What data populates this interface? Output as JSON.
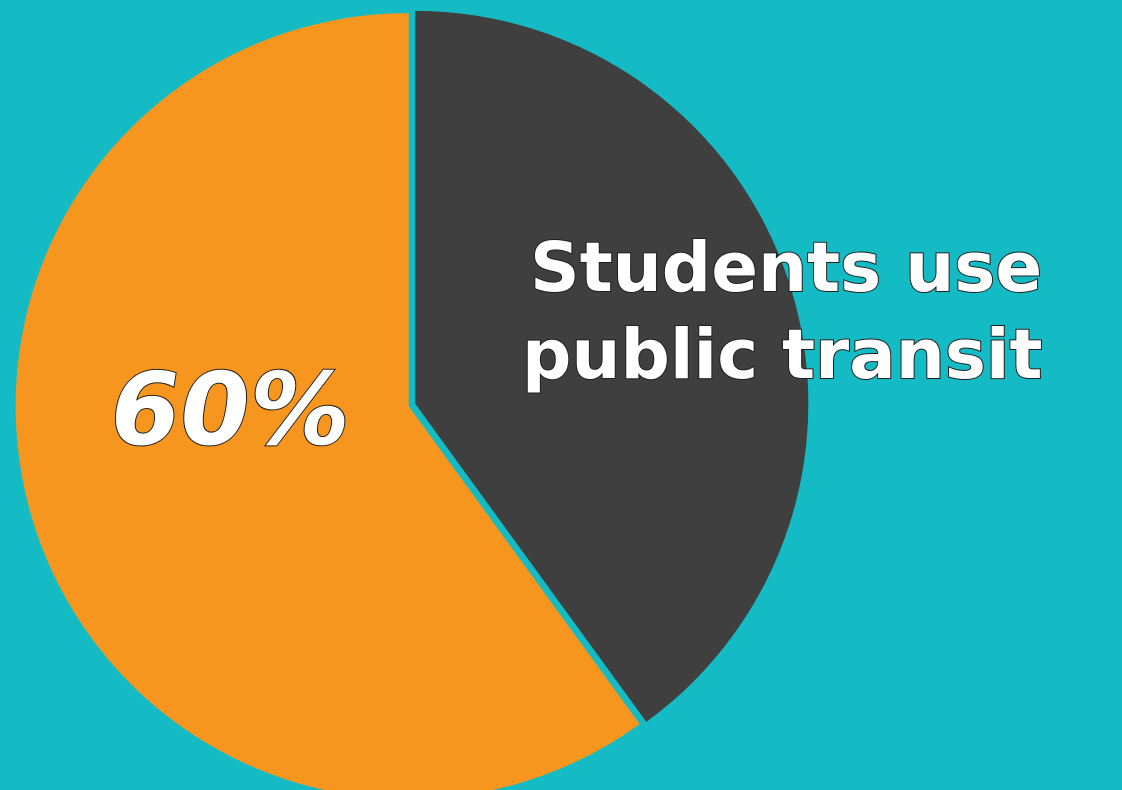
{
  "chart_data": {
    "type": "pie",
    "categories": [
      "Students use public transit",
      ""
    ],
    "values": [
      60,
      40
    ],
    "colors": [
      "#F7961E",
      "#3F3F3F"
    ],
    "background": "#15BBC4",
    "data_label": "60%",
    "caption_lines": [
      "Students use",
      "public transit"
    ],
    "title": "",
    "legend": "none"
  }
}
